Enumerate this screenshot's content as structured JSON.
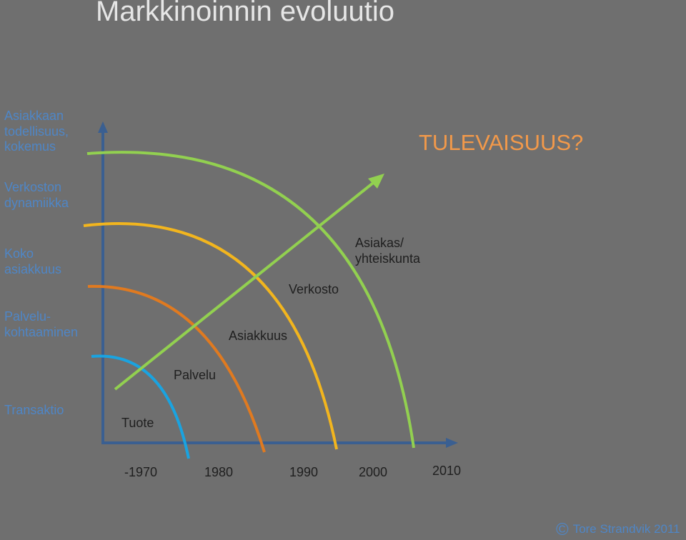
{
  "title": "Markkinoinnin evoluutio",
  "colors": {
    "background": "#6f6f6f",
    "axis": "#3a5f91",
    "arc_transaktio": "#1aa3e0",
    "arc_palvelu": "#e07a20",
    "arc_asiakkuus": "#f2b51e",
    "arc_verkosto": "#92d050",
    "arrow": "#92d050",
    "future": "#f2994a",
    "left_labels": "#4f86c6"
  },
  "left_labels": {
    "asiakkaan": "Asiakkaan\ntodellisuus,\nkokemus",
    "verkoston": "Verkoston\ndynamiikka",
    "koko": "Koko\nasiakkuus",
    "palvelukohtaaminen": "Palvelu-\nkohtaaminen",
    "transaktio": "Transaktio"
  },
  "arc_labels": {
    "tuote": "Tuote",
    "palvelu": "Palvelu",
    "asiakkuus": "Asiakkuus",
    "verkosto": "Verkosto",
    "asiakas": "Asiakas/\nyhteiskunta"
  },
  "future_label": "TULEVAISUUS?",
  "x_axis": [
    "-1970",
    "1980",
    "1990",
    "2000",
    "2010"
  ],
  "copyright": {
    "symbol": "©",
    "text": "Tore Strandvik 2011"
  }
}
